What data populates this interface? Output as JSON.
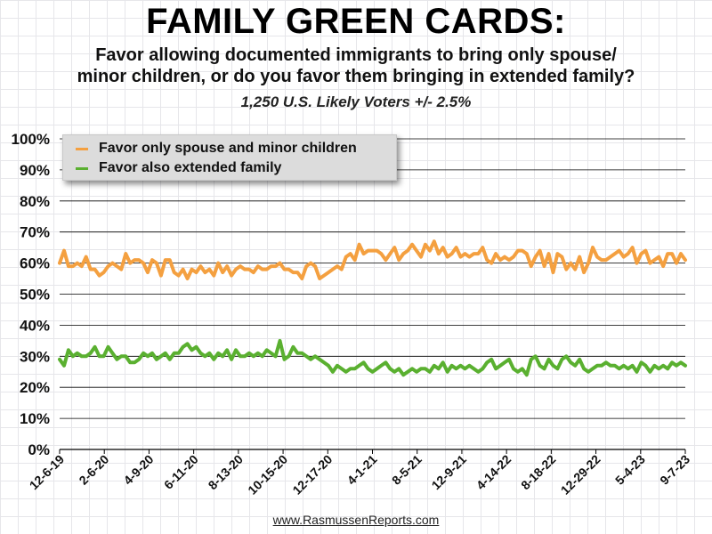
{
  "title": "FAMILY GREEN CARDS:",
  "subtitle_line1": "Favor allowing documented immigrants to bring only spouse/",
  "subtitle_line2": "minor children, or do you favor them bringing in extended family?",
  "sample": "1,250 U.S. Likely Voters +/- 2.5%",
  "source": "www.RasmussenReports.com",
  "colors": {
    "spouse_series": "#f4a040",
    "extended_series": "#5ab030",
    "gridline": "#000000"
  },
  "legend": {
    "item1": "Favor only spouse and minor children",
    "item2": "Favor also extended family",
    "placement": "top-left"
  },
  "chart_data": {
    "type": "line",
    "ylim": [
      0,
      100
    ],
    "y_ticks": [
      {
        "value": 0,
        "label": "0%"
      },
      {
        "value": 10,
        "label": "10%"
      },
      {
        "value": 20,
        "label": "20%"
      },
      {
        "value": 30,
        "label": "30%"
      },
      {
        "value": 40,
        "label": "40%"
      },
      {
        "value": 50,
        "label": "50%"
      },
      {
        "value": 60,
        "label": "60%"
      },
      {
        "value": 70,
        "label": "70%"
      },
      {
        "value": 80,
        "label": "80%"
      },
      {
        "value": 90,
        "label": "90%"
      },
      {
        "value": 100,
        "label": "100%"
      }
    ],
    "x_tick_labels": [
      "12-6-19",
      "2-6-20",
      "4-9-20",
      "6-11-20",
      "8-13-20",
      "10-15-20",
      "12-17-20",
      "4-1-21",
      "8-5-21",
      "12-9-21",
      "4-14-22",
      "8-18-22",
      "12-29-22",
      "5-4-23",
      "9-7-23"
    ],
    "grid": true,
    "series": [
      {
        "name": "Favor only spouse and minor children",
        "color": "#f4a040",
        "values": [
          60,
          64,
          59,
          59,
          60,
          59,
          62,
          58,
          58,
          56,
          57,
          59,
          60,
          59,
          58,
          63,
          60,
          61,
          61,
          60,
          57,
          61,
          60,
          56,
          61,
          61,
          57,
          56,
          58,
          55,
          58,
          57,
          59,
          57,
          58,
          56,
          60,
          57,
          59,
          56,
          58,
          59,
          58,
          58,
          57,
          59,
          58,
          58,
          59,
          59,
          60,
          58,
          58,
          57,
          57,
          55,
          59,
          60,
          59,
          55,
          56,
          57,
          58,
          59,
          58,
          62,
          63,
          61,
          66,
          63,
          64,
          64,
          64,
          63,
          61,
          63,
          65,
          61,
          63,
          64,
          66,
          64,
          62,
          66,
          64,
          67,
          63,
          65,
          62,
          63,
          65,
          62,
          63,
          62,
          63,
          63,
          65,
          61,
          60,
          63,
          61,
          62,
          61,
          62,
          64,
          64,
          63,
          59,
          62,
          64,
          59,
          63,
          57,
          63,
          62,
          58,
          60,
          58,
          62,
          57,
          60,
          65,
          62,
          61,
          61,
          62,
          63,
          64,
          62,
          63,
          65,
          60,
          63,
          64,
          60,
          61,
          62,
          59,
          63,
          63,
          60,
          63,
          61
        ]
      },
      {
        "name": "Favor also extended family",
        "color": "#5ab030",
        "values": [
          29,
          27,
          32,
          30,
          31,
          30,
          30,
          31,
          33,
          30,
          30,
          33,
          31,
          29,
          30,
          30,
          28,
          28,
          29,
          31,
          30,
          31,
          29,
          30,
          31,
          29,
          31,
          31,
          33,
          34,
          32,
          33,
          31,
          30,
          31,
          29,
          31,
          30,
          32,
          29,
          32,
          30,
          30,
          31,
          30,
          31,
          30,
          32,
          31,
          30,
          35,
          29,
          30,
          33,
          31,
          31,
          30,
          29,
          30,
          29,
          28,
          27,
          25,
          27,
          26,
          25,
          26,
          26,
          27,
          28,
          26,
          25,
          26,
          27,
          28,
          26,
          25,
          26,
          24,
          25,
          26,
          25,
          26,
          26,
          25,
          27,
          26,
          28,
          25,
          27,
          26,
          27,
          26,
          27,
          26,
          25,
          26,
          28,
          29,
          26,
          27,
          28,
          29,
          26,
          25,
          26,
          24,
          29,
          30,
          27,
          26,
          29,
          27,
          26,
          29,
          30,
          28,
          27,
          29,
          26,
          25,
          26,
          27,
          27,
          28,
          27,
          27,
          26,
          27,
          26,
          27,
          25,
          28,
          27,
          25,
          27,
          26,
          27,
          26,
          28,
          27,
          28,
          27
        ]
      }
    ]
  }
}
